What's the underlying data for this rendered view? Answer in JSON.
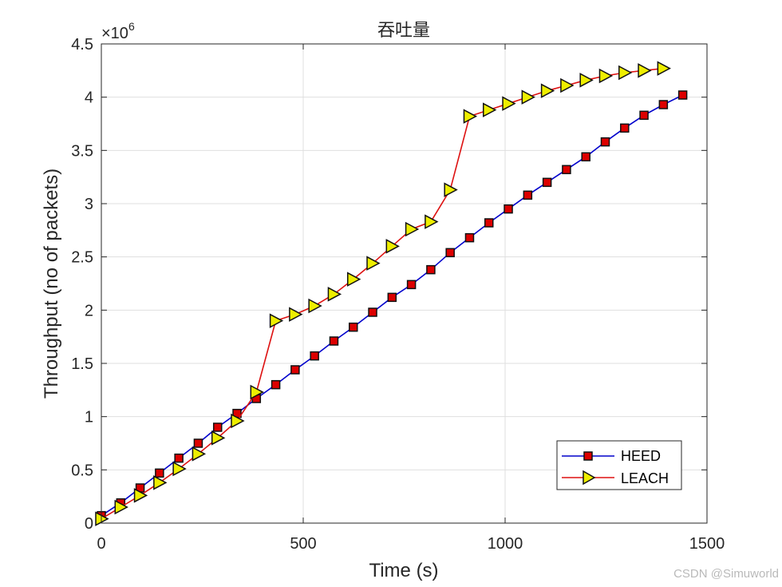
{
  "chart_data": {
    "type": "line",
    "title": "吞吐量",
    "xlabel": "Time (s)",
    "ylabel": "Throughput (no of packets)",
    "xlim": [
      0,
      1500
    ],
    "ylim": [
      0,
      4.5
    ],
    "y_exponent_base": "×10",
    "y_exponent_power": "6",
    "xticks": [
      0,
      500,
      1000,
      1500
    ],
    "xtick_labels": [
      "0",
      "500",
      "1000",
      "1500"
    ],
    "yticks": [
      0,
      0.5,
      1,
      1.5,
      2,
      2.5,
      3,
      3.5,
      4,
      4.5
    ],
    "ytick_labels": [
      "0",
      "0.5",
      "1",
      "1.5",
      "2",
      "2.5",
      "3",
      "3.5",
      "4",
      "4.5"
    ],
    "grid": true,
    "legend_position": "bottom-right",
    "series": [
      {
        "name": "HEED",
        "color": "#0000cc",
        "marker": "square",
        "marker_fill": "#dd0000",
        "x": [
          0,
          48,
          96,
          144,
          192,
          240,
          288,
          336,
          384,
          432,
          480,
          528,
          576,
          624,
          672,
          720,
          768,
          816,
          864,
          912,
          960,
          1008,
          1056,
          1104,
          1152,
          1200,
          1248,
          1296,
          1344,
          1392,
          1440
        ],
        "y": [
          0.07,
          0.19,
          0.33,
          0.47,
          0.61,
          0.75,
          0.9,
          1.03,
          1.17,
          1.3,
          1.44,
          1.57,
          1.71,
          1.84,
          1.98,
          2.12,
          2.24,
          2.38,
          2.54,
          2.68,
          2.82,
          2.95,
          3.08,
          3.2,
          3.32,
          3.44,
          3.58,
          3.71,
          3.83,
          3.93,
          4.02
        ]
      },
      {
        "name": "LEACH",
        "color": "#dd1111",
        "marker": "triangle-right",
        "marker_fill": "#eeee00",
        "x": [
          0,
          48,
          96,
          144,
          192,
          240,
          288,
          336,
          384,
          432,
          480,
          528,
          576,
          624,
          672,
          720,
          768,
          816,
          864,
          912,
          960,
          1008,
          1056,
          1104,
          1152,
          1200,
          1248,
          1296,
          1344,
          1392
        ],
        "y": [
          0.04,
          0.15,
          0.26,
          0.38,
          0.51,
          0.65,
          0.8,
          0.96,
          1.23,
          1.9,
          1.96,
          2.04,
          2.15,
          2.29,
          2.44,
          2.6,
          2.76,
          2.83,
          3.13,
          3.82,
          3.88,
          3.94,
          4.0,
          4.06,
          4.11,
          4.16,
          4.2,
          4.23,
          4.25,
          4.27
        ]
      }
    ]
  },
  "watermark": "CSDN @Simuworld"
}
